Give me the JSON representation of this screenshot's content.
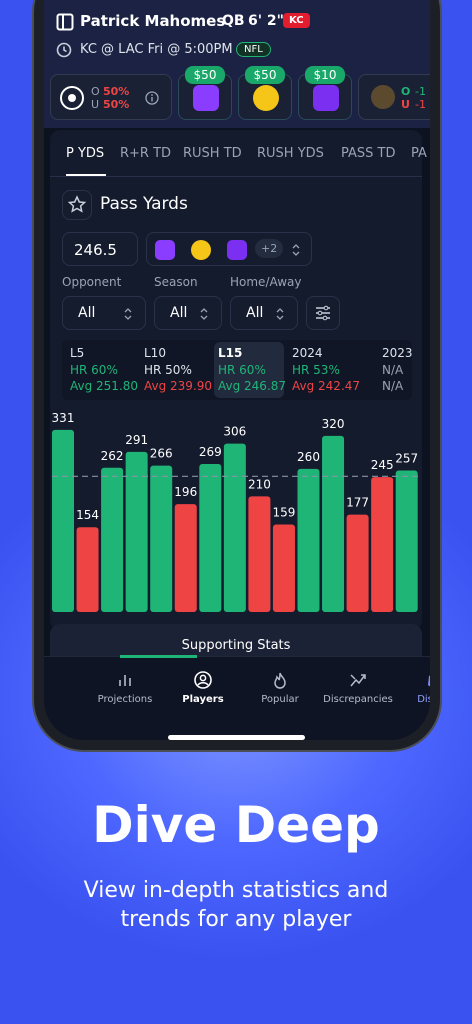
{
  "header": {
    "player": "Patrick Mahomes",
    "position": "QB",
    "height": "6' 2\"",
    "team": "KC",
    "game": "KC @ LAC Fri @ 5:00PM",
    "league": "NFL"
  },
  "books": [
    {
      "over": "O",
      "over_pct": "50%",
      "under": "U",
      "under_pct": "50%"
    },
    {
      "bonus": "$50"
    },
    {
      "bonus": "$50"
    },
    {
      "bonus": "$10"
    },
    {
      "over": "O",
      "over_line": "-1",
      "under": "U",
      "under_line": "-1"
    }
  ],
  "tabs": [
    "P YDS",
    "R+R TD",
    "RUSH TD",
    "RUSH YDS",
    "PASS TD",
    "PA"
  ],
  "stat_title": "Pass Yards",
  "more_books": "+2",
  "filters": [
    {
      "label": "Opponent",
      "value": "All"
    },
    {
      "label": "Season",
      "value": "All"
    },
    {
      "label": "Home/Away",
      "value": "All"
    }
  ],
  "splits": [
    {
      "name": "L5",
      "hr": "HR 60%",
      "avg": "Avg 251.80"
    },
    {
      "name": "L10",
      "hr": "HR 50%",
      "avg": "Avg 239.90"
    },
    {
      "name": "L15",
      "hr": "HR 60%",
      "avg": "Avg 246.87"
    },
    {
      "name": "2024",
      "hr": "HR 53%",
      "avg": "Avg 242.47"
    },
    {
      "name": "2023",
      "hr": "N/A",
      "avg": "N/A"
    }
  ],
  "chart_data": {
    "type": "bar",
    "values": [
      331,
      154,
      262,
      291,
      266,
      196,
      269,
      306,
      210,
      159,
      260,
      320,
      177,
      245,
      257
    ],
    "threshold": 246.5,
    "over_color": "#1fb577",
    "under_color": "#ef4444",
    "ylim": [
      0,
      367
    ]
  },
  "supporting": "Supporting Stats",
  "nav": [
    "Projections",
    "Players",
    "Popular",
    "Discrepancies",
    "Discord"
  ],
  "hero": {
    "title": "Dive Deep",
    "subtitle": [
      "View in-depth statistics and",
      "trends for any player"
    ]
  }
}
